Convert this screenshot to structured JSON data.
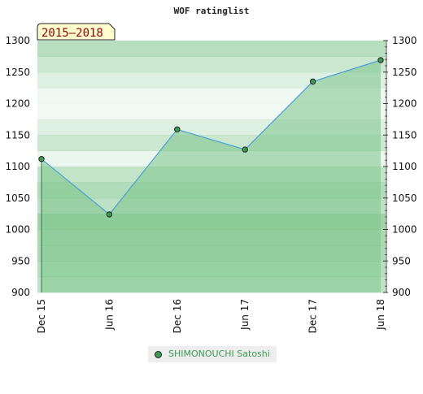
{
  "chart_data": {
    "type": "area",
    "title": "WOF ratinglist",
    "subtitle": "2015–2018",
    "x": [
      "Dec 15",
      "Jun 16",
      "Dec 16",
      "Jun 17",
      "Dec 17",
      "Jun 18"
    ],
    "series": [
      {
        "name": "SHIMONOUCHI Satoshi",
        "values": [
          1112,
          1024,
          1159,
          1127,
          1235,
          1269
        ]
      }
    ],
    "ylim": [
      900,
      1300
    ],
    "yticks": [
      900,
      950,
      1000,
      1050,
      1100,
      1150,
      1200,
      1250,
      1300
    ],
    "grid": false,
    "legend_position": "bottom-center",
    "colors": {
      "line": "#4a9fd8",
      "area": "#7cc48a",
      "marker": "#3d9a52",
      "legend_text": "#3d9a52",
      "subtitle_bg": "#fffdd0",
      "subtitle_text": "#8b0000"
    }
  }
}
